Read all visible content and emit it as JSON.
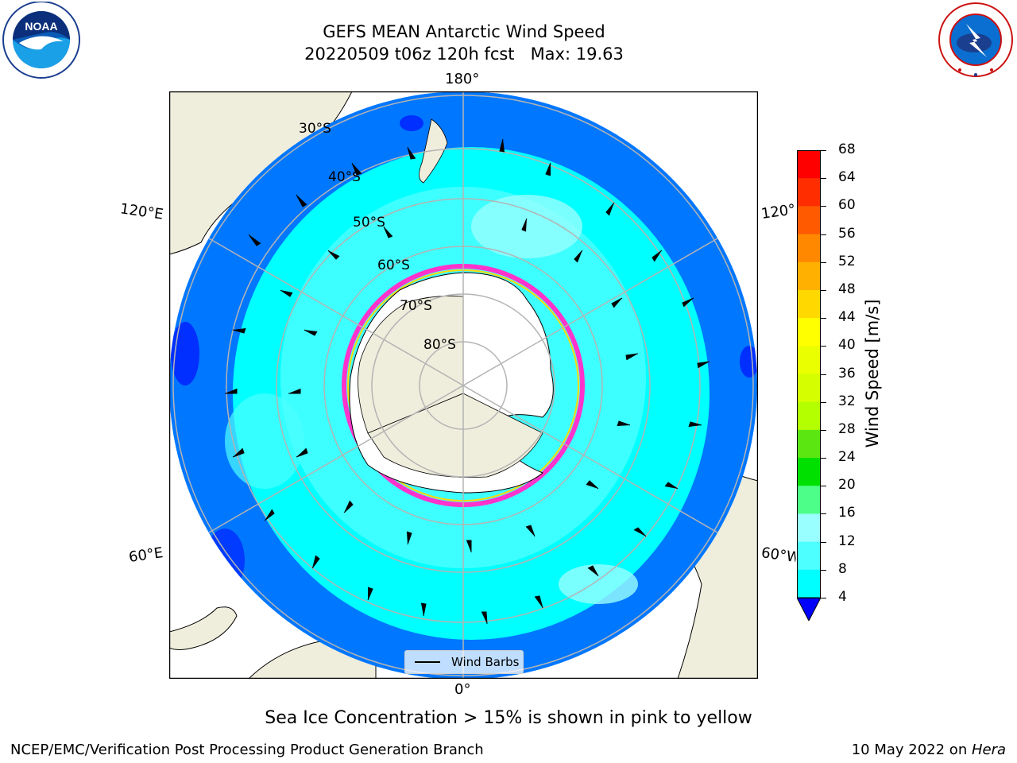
{
  "header": {
    "title_line1": "GEFS MEAN Antarctic Wind Speed",
    "title_line2": "20220509 t06z 120h fcst   Max: 19.63"
  },
  "logos": {
    "left": {
      "icon": "noaa-logo-icon",
      "text": "NOAA"
    },
    "right": {
      "icon": "nws-logo-icon",
      "text": "NATIONAL WEATHER SERVICE"
    }
  },
  "map": {
    "longitude_labels": {
      "top": "180°",
      "bottom": "0°",
      "left_upper": "120°E",
      "left_lower": "60°E",
      "right_upper": "120°W",
      "right_lower": "60°W"
    },
    "latitude_labels": [
      "30°S",
      "40°S",
      "50°S",
      "60°S",
      "70°S",
      "80°S"
    ],
    "legend_label": "Wind Barbs",
    "colors": {
      "ocean_4_8": "#0077ff",
      "ocean_8_12": "#00ffff",
      "ocean_12_16": "#4dffff",
      "ocean_16_20": "#99ffff",
      "land": "#efeddc",
      "ice_sheet": "#ffffff",
      "sea_ice_edge": "#ff33cc",
      "grid": "#b4b4b4"
    }
  },
  "colorbar": {
    "label": "Wind Speed [m/s]",
    "ticks": [
      "68",
      "64",
      "60",
      "56",
      "52",
      "48",
      "44",
      "40",
      "36",
      "32",
      "28",
      "24",
      "20",
      "16",
      "12",
      "8",
      "4"
    ],
    "colors": [
      "#ff0000",
      "#ff2d00",
      "#ff5a00",
      "#ff8800",
      "#ffb000",
      "#ffd800",
      "#ffff00",
      "#eaff00",
      "#d5ff00",
      "#b4ff00",
      "#5be612",
      "#00e000",
      "#4dff88",
      "#99ffff",
      "#4dffff",
      "#00ffff",
      "#0077ff"
    ],
    "under_color": "#0000ff"
  },
  "footer": {
    "note": "Sea Ice Concentration > 15% is shown in pink to yellow",
    "branch": "NCEP/EMC/Verification Post Processing Product Generation Branch",
    "date_prefix": "10 May 2022 on ",
    "machine": "Hera"
  }
}
